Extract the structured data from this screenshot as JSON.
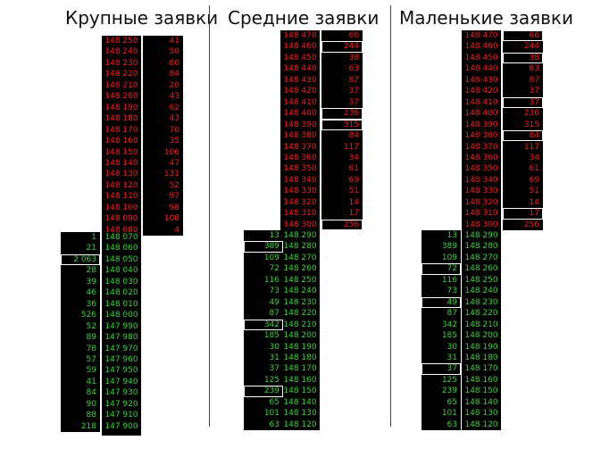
{
  "panels": [
    {
      "title": "Крупные заявки",
      "ask_prices": [
        "148 250",
        "148 240",
        "148 230",
        "148 220",
        "148 210",
        "148 200",
        "148 190",
        "148 180",
        "148 170",
        "148 160",
        "148 150",
        "148 140",
        "148 130",
        "148 120",
        "148 110",
        "148 100",
        "148 090",
        "148 080"
      ],
      "ask_volumes": [
        "41",
        "50",
        "80",
        "84",
        "20",
        "43",
        "62",
        "43",
        "70",
        "35",
        "106",
        "47",
        "131",
        "52",
        "97",
        "98",
        "108",
        "4"
      ],
      "ask_highlight": [],
      "bid_prices": [
        "148 070",
        "148 060",
        "148 050",
        "148 040",
        "148 030",
        "148 020",
        "148 010",
        "148 000",
        "147 990",
        "147 980",
        "147 970",
        "147 960",
        "147 950",
        "147 940",
        "147 930",
        "147 920",
        "147 910",
        "147 900"
      ],
      "bid_volumes": [
        "1",
        "21",
        "2 063",
        "28",
        "39",
        "46",
        "36",
        "526",
        "52",
        "89",
        "78",
        "57",
        "59",
        "41",
        "84",
        "90",
        "88",
        "218"
      ],
      "bid_highlight": [
        2
      ]
    },
    {
      "title": "Средние заявки",
      "ask_prices": [
        "148 470",
        "148 460",
        "148 450",
        "148 440",
        "148 430",
        "148 420",
        "148 410",
        "148 400",
        "148 390",
        "148 380",
        "148 370",
        "148 360",
        "148 350",
        "148 340",
        "148 330",
        "148 320",
        "148 310",
        "148 300"
      ],
      "ask_volumes": [
        "66",
        "244",
        "38",
        "63",
        "87",
        "37",
        "37",
        "236",
        "315",
        "84",
        "117",
        "34",
        "61",
        "69",
        "51",
        "14",
        "17",
        "256"
      ],
      "ask_highlight": [
        1,
        7,
        8,
        17
      ],
      "bid_prices": [
        "148 290",
        "148 280",
        "148 270",
        "148 260",
        "148 250",
        "148 240",
        "148 230",
        "148 220",
        "148 210",
        "148 200",
        "148 190",
        "148 180",
        "148 170",
        "148 160",
        "148 150",
        "148 140",
        "148 130",
        "148 120"
      ],
      "bid_volumes": [
        "13",
        "389",
        "109",
        "72",
        "116",
        "73",
        "49",
        "87",
        "342",
        "185",
        "30",
        "31",
        "37",
        "125",
        "239",
        "65",
        "101",
        "63"
      ],
      "bid_highlight": [
        1,
        8,
        14
      ]
    },
    {
      "title": "Маленькие заявки",
      "ask_prices": [
        "148 470",
        "148 460",
        "148 450",
        "148 440",
        "148 430",
        "148 420",
        "148 410",
        "148 400",
        "148 390",
        "148 380",
        "148 370",
        "148 360",
        "148 350",
        "148 340",
        "148 330",
        "148 320",
        "148 310",
        "148 300"
      ],
      "ask_volumes": [
        "66",
        "244",
        "38",
        "63",
        "87",
        "37",
        "37",
        "236",
        "315",
        "84",
        "117",
        "34",
        "61",
        "69",
        "51",
        "14",
        "17",
        "256"
      ],
      "ask_highlight": [
        0,
        2,
        6,
        9,
        16
      ],
      "bid_prices": [
        "148 290",
        "148 280",
        "148 270",
        "148 260",
        "148 250",
        "148 240",
        "148 230",
        "148 220",
        "148 210",
        "148 200",
        "148 190",
        "148 180",
        "148 170",
        "148 160",
        "148 150",
        "148 140",
        "148 130",
        "148 120"
      ],
      "bid_volumes": [
        "13",
        "389",
        "109",
        "72",
        "116",
        "73",
        "49",
        "87",
        "342",
        "185",
        "30",
        "31",
        "37",
        "125",
        "239",
        "65",
        "101",
        "63"
      ],
      "bid_highlight": [
        3,
        6,
        12
      ]
    }
  ]
}
